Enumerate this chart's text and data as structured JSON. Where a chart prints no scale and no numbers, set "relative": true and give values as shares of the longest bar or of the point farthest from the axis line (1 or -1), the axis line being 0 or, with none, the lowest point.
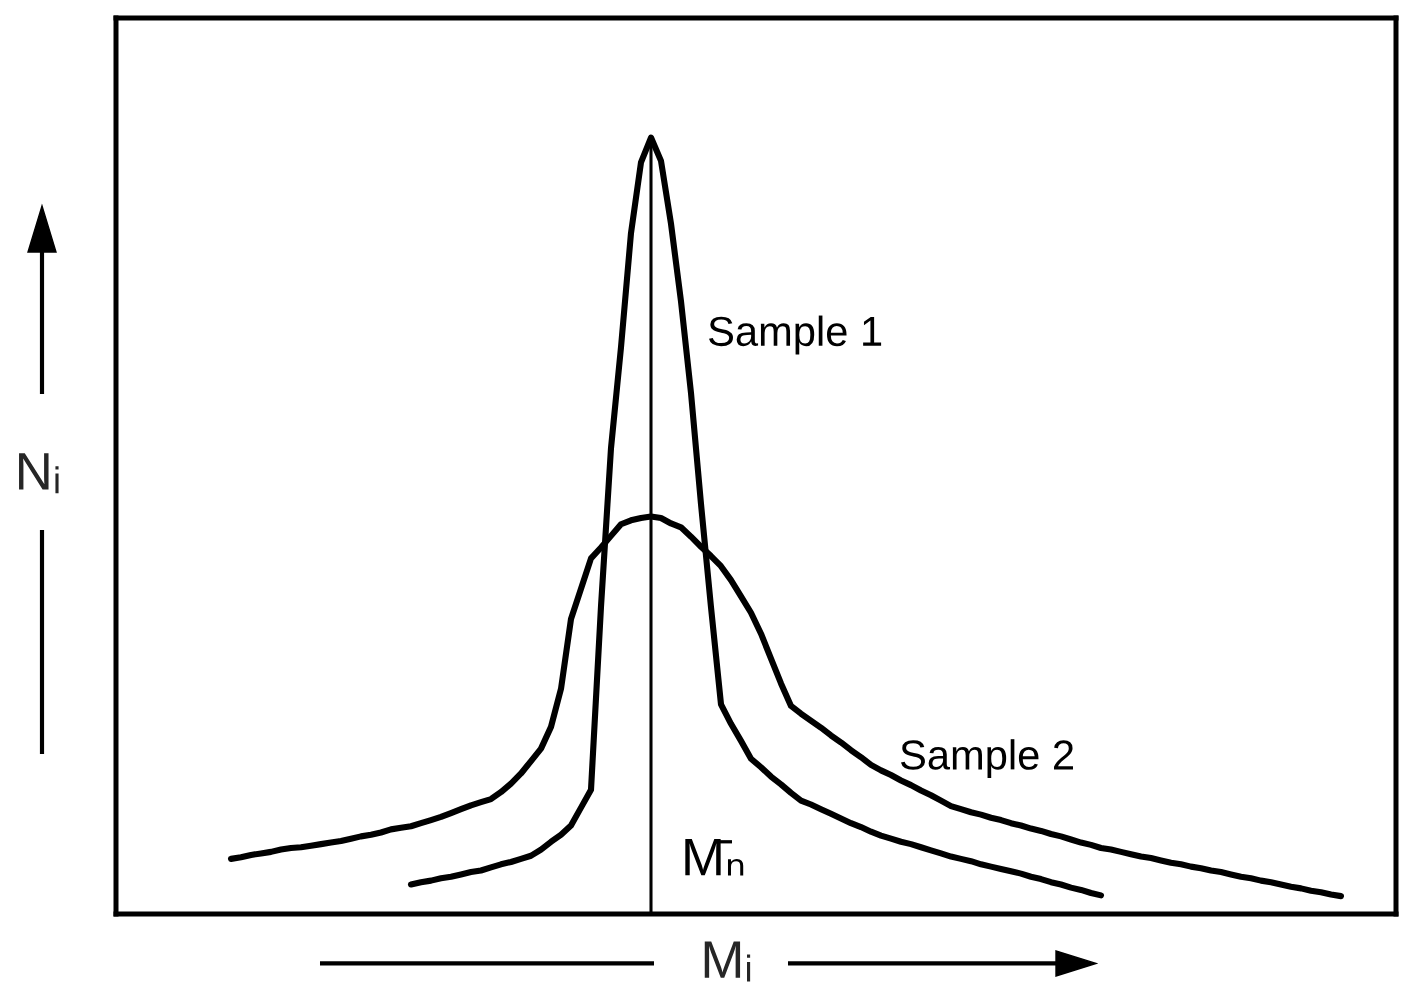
{
  "chart_data": {
    "type": "line",
    "relative": true,
    "xlabel": "Mᵢ",
    "ylabel": "Nᵢ",
    "categories": [
      null,
      null,
      null,
      null,
      null,
      null,
      null,
      null,
      null,
      null,
      null,
      null,
      null,
      null,
      null,
      null,
      null,
      null,
      null,
      null,
      null,
      null,
      null,
      null,
      null,
      null,
      null,
      null,
      null,
      null,
      null,
      null,
      null,
      null,
      null,
      null,
      null,
      null,
      null,
      null,
      null,
      null,
      null,
      null,
      null,
      null,
      null,
      null,
      null,
      null,
      null,
      null,
      null,
      null,
      null,
      null,
      null,
      null,
      null,
      null,
      null,
      null,
      null,
      null,
      null,
      null,
      null,
      null,
      null,
      null,
      null,
      null,
      null,
      null,
      null,
      null,
      null,
      null,
      null,
      null,
      null,
      null,
      null,
      null,
      null,
      null,
      null,
      null,
      null,
      null,
      null,
      null,
      null,
      null,
      null,
      null,
      null,
      null,
      null,
      null,
      null,
      null,
      null,
      null,
      null,
      null,
      null,
      null,
      null,
      null,
      null,
      null,
      null,
      null,
      null,
      null,
      null,
      null,
      null,
      null,
      null,
      null,
      null,
      null,
      null,
      null,
      null,
      null
    ],
    "series": [
      {
        "name": "Sample 1",
        "color": "#000000",
        "values": [
          null,
          null,
          null,
          null,
          null,
          null,
          null,
          null,
          null,
          null,
          null,
          null,
          null,
          null,
          null,
          null,
          null,
          null,
          null,
          null,
          null,
          null,
          null,
          null,
          null,
          null,
          null,
          null,
          null,
          0.038,
          0.041,
          0.043,
          0.046,
          0.048,
          0.051,
          0.054,
          0.056,
          0.06,
          0.064,
          0.067,
          0.071,
          0.075,
          0.083,
          0.093,
          0.102,
          0.114,
          0.137,
          0.16,
          0.396,
          0.6,
          0.73,
          0.877,
          0.968,
          1.0,
          0.97,
          0.889,
          0.789,
          0.671,
          0.528,
          0.395,
          0.27,
          0.245,
          0.223,
          0.2,
          0.189,
          0.177,
          0.167,
          0.156,
          0.146,
          0.141,
          0.135,
          0.129,
          0.123,
          0.117,
          0.112,
          0.106,
          0.101,
          0.097,
          0.093,
          0.09,
          0.086,
          0.082,
          0.078,
          0.074,
          0.071,
          0.068,
          0.064,
          0.061,
          0.058,
          0.055,
          0.052,
          0.048,
          0.045,
          0.041,
          0.038,
          0.034,
          0.031,
          0.027,
          0.024,
          null,
          null,
          null,
          null,
          null,
          null,
          null,
          null,
          null,
          null,
          null,
          null,
          null,
          null,
          null,
          null,
          null,
          null,
          null,
          null,
          null,
          null,
          null,
          null,
          null,
          null,
          null,
          null,
          null
        ]
      },
      {
        "name": "Sample 2",
        "color": "#000000",
        "values": [
          null,
          null,
          null,
          null,
          null,
          null,
          null,
          null,
          null,
          null,
          null,
          0.071,
          0.073,
          0.076,
          0.078,
          0.08,
          0.083,
          0.085,
          0.086,
          0.088,
          0.09,
          0.092,
          0.094,
          0.097,
          0.1,
          0.102,
          0.105,
          0.109,
          0.111,
          0.113,
          0.117,
          0.121,
          0.125,
          0.13,
          0.135,
          0.14,
          0.144,
          0.148,
          0.157,
          0.168,
          0.181,
          0.197,
          0.213,
          0.241,
          0.29,
          0.38,
          0.419,
          0.458,
          0.472,
          0.487,
          0.502,
          0.507,
          0.51,
          0.512,
          0.51,
          0.503,
          0.498,
          0.486,
          0.473,
          0.461,
          0.448,
          0.43,
          0.409,
          0.388,
          0.361,
          0.329,
          0.297,
          0.268,
          0.258,
          0.249,
          0.24,
          0.23,
          0.221,
          0.211,
          0.202,
          0.192,
          0.185,
          0.179,
          0.172,
          0.166,
          0.159,
          0.153,
          0.146,
          0.139,
          0.135,
          0.131,
          0.128,
          0.124,
          0.121,
          0.117,
          0.114,
          0.11,
          0.107,
          0.103,
          0.1,
          0.096,
          0.092,
          0.089,
          0.085,
          0.083,
          0.08,
          0.077,
          0.074,
          0.072,
          0.069,
          0.066,
          0.064,
          0.061,
          0.059,
          0.056,
          0.054,
          0.051,
          0.048,
          0.046,
          0.043,
          0.041,
          0.038,
          0.035,
          0.033,
          0.03,
          0.028,
          0.025,
          0.023,
          null,
          null,
          null,
          null,
          null
        ]
      }
    ],
    "annotations": [
      "M̄ₙ"
    ]
  }
}
